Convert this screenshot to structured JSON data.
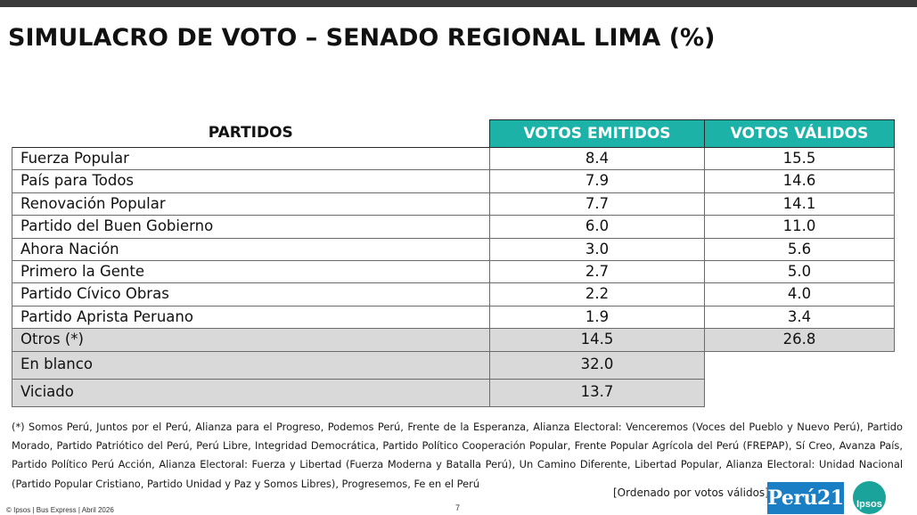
{
  "title": "SIMULACRO DE VOTO – SENADO REGIONAL LIMA (%)",
  "table": {
    "headers": [
      "PARTIDOS",
      "VOTOS EMITIDOS",
      "VOTOS VÁLIDOS"
    ],
    "rows": [
      {
        "partido": "Fuerza Popular",
        "emitidos": "8.4",
        "validos": "15.5"
      },
      {
        "partido": "País para Todos",
        "emitidos": "7.9",
        "validos": "14.6"
      },
      {
        "partido": "Renovación Popular",
        "emitidos": "7.7",
        "validos": "14.1"
      },
      {
        "partido": "Partido del Buen Gobierno",
        "emitidos": "6.0",
        "validos": "11.0"
      },
      {
        "partido": "Ahora Nación",
        "emitidos": "3.0",
        "validos": "5.6"
      },
      {
        "partido": "Primero la Gente",
        "emitidos": "2.7",
        "validos": "5.0"
      },
      {
        "partido": "Partido Cívico Obras",
        "emitidos": "2.2",
        "validos": "4.0"
      },
      {
        "partido": "Partido Aprista Peruano",
        "emitidos": "1.9",
        "validos": "3.4"
      },
      {
        "partido": "Otros (*)",
        "emitidos": "14.5",
        "validos": "26.8"
      },
      {
        "partido": "En blanco",
        "emitidos": "32.0",
        "validos": ""
      },
      {
        "partido": "Viciado",
        "emitidos": "13.7",
        "validos": ""
      }
    ]
  },
  "footnote": "(*) Somos Perú, Juntos por el Perú, Alianza para el Progreso, Podemos Perú, Frente de la Esperanza, Alianza Electoral: Venceremos (Voces del Pueblo y Nuevo Perú), Partido Morado, Partido Patriótico del Perú, Perú Libre, Integridad Democrática, Partido Político Cooperación Popular, Frente Popular Agrícola del Perú (FREPAP), Sí Creo, Avanza País, Partido Político Perú Acción, Alianza Electoral: Fuerza y Libertad (Fuerza Moderna y Batalla Perú),  Un Camino Diferente, Libertad Popular, Alianza Electoral: Unidad Nacional (Partido Popular Cristiano, Partido Unidad y Paz y Somos Libres), Progresemos, Fe en el Perú",
  "order_note": "[Ordenado por votos válidos]",
  "source": "© Ipsos | Bus Express | Abril 2026",
  "page_number": "7",
  "logos": {
    "peru21": "Perú21",
    "ipsos": "Ipsos"
  },
  "colors": {
    "header_teal": "#1cb2a8",
    "highlight_gray": "#d9d9d9",
    "peru21_blue": "#1a7ec4",
    "ipsos_teal": "#19a39b"
  }
}
